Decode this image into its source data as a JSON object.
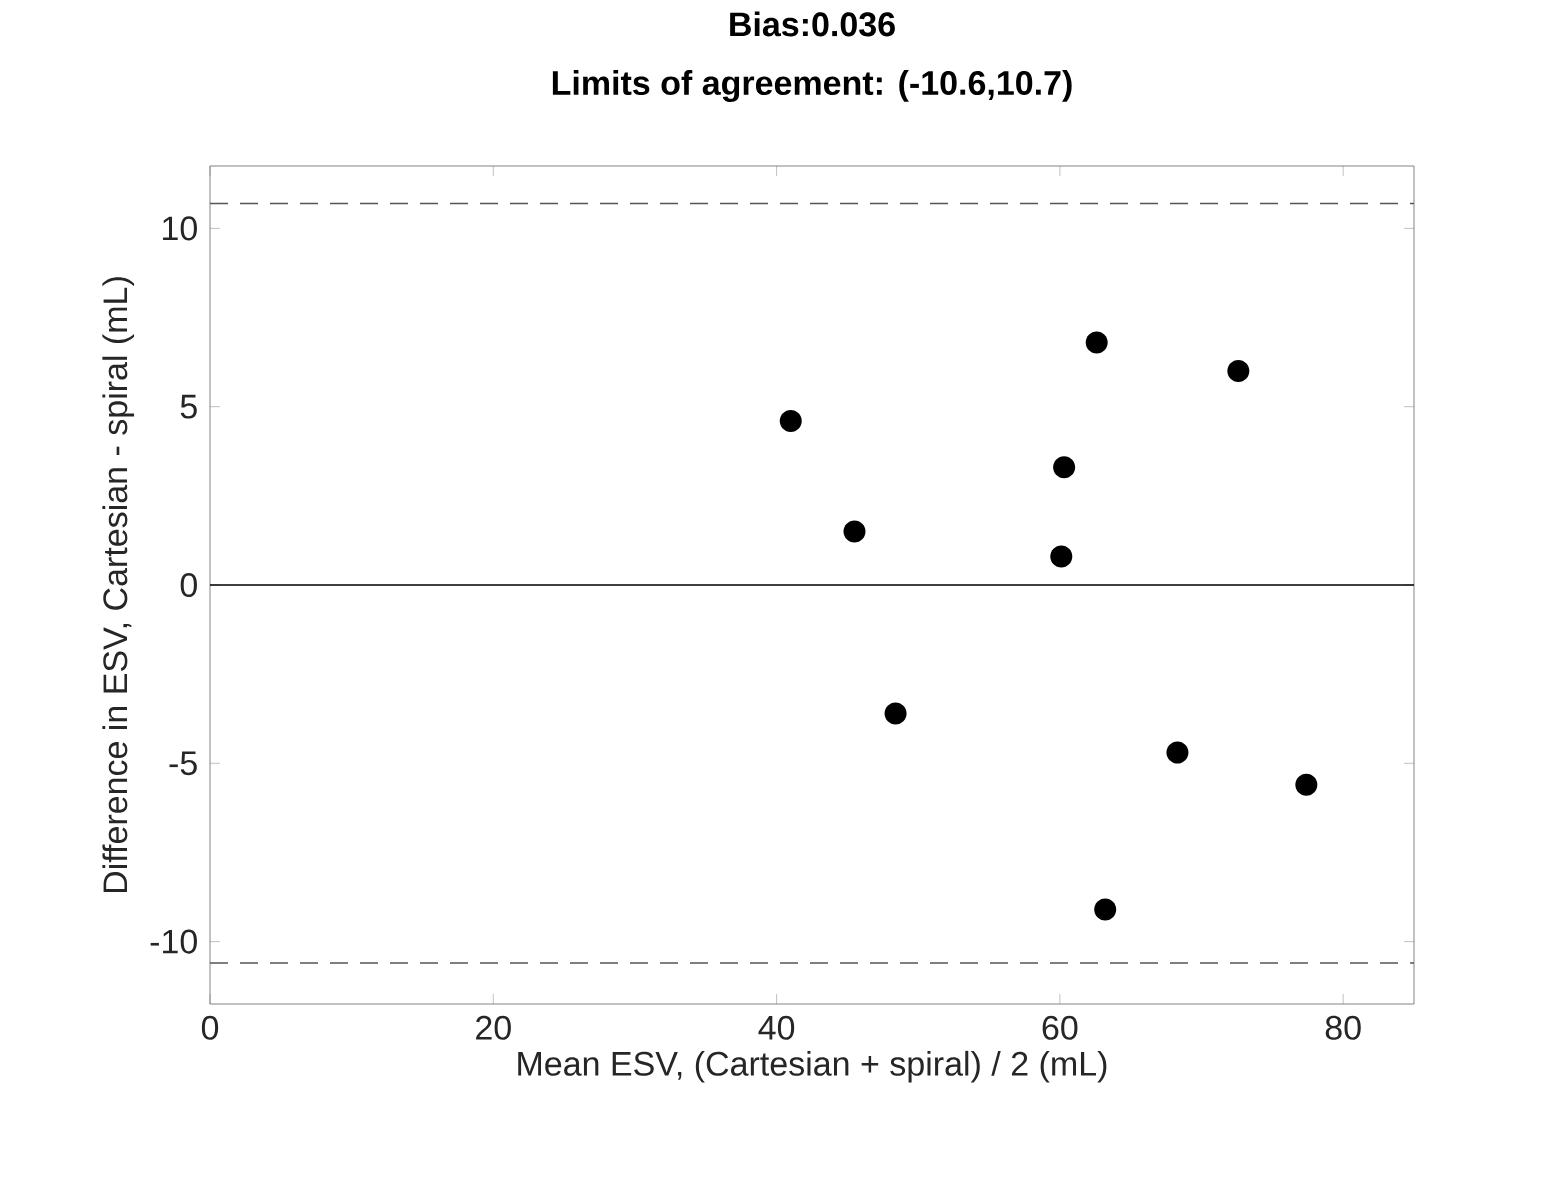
{
  "chart_data": {
    "type": "scatter",
    "title": "Bias:0.036",
    "subtitle": "Limits of agreement: (-10.6,10.7)",
    "xlabel": "Mean ESV, (Cartesian + spiral) / 2 (mL)",
    "ylabel": "Difference in ESV, Cartesian - spiral (mL)",
    "x": [
      41.0,
      45.5,
      48.4,
      60.3,
      60.1,
      62.6,
      63.2,
      68.3,
      72.6,
      77.4
    ],
    "values": [
      4.6,
      1.5,
      -3.6,
      3.3,
      0.8,
      6.8,
      -9.1,
      -4.7,
      6.0,
      -5.6
    ],
    "color": "#000000",
    "marker": "circle",
    "xlim": [
      0,
      85
    ],
    "ylim": [
      -11.75,
      11.75
    ],
    "xticks": [
      0,
      20,
      40,
      60,
      80
    ],
    "yticks": [
      -10,
      -5,
      0,
      5,
      10
    ],
    "ref_lines": [
      {
        "axis": "y",
        "value": 0,
        "color": "#000000",
        "line_style": "solid"
      },
      {
        "axis": "y",
        "value": 10.7,
        "color": "#555555",
        "line_style": "dashed"
      },
      {
        "axis": "y",
        "value": -10.6,
        "color": "#555555",
        "line_style": "dashed"
      }
    ]
  }
}
